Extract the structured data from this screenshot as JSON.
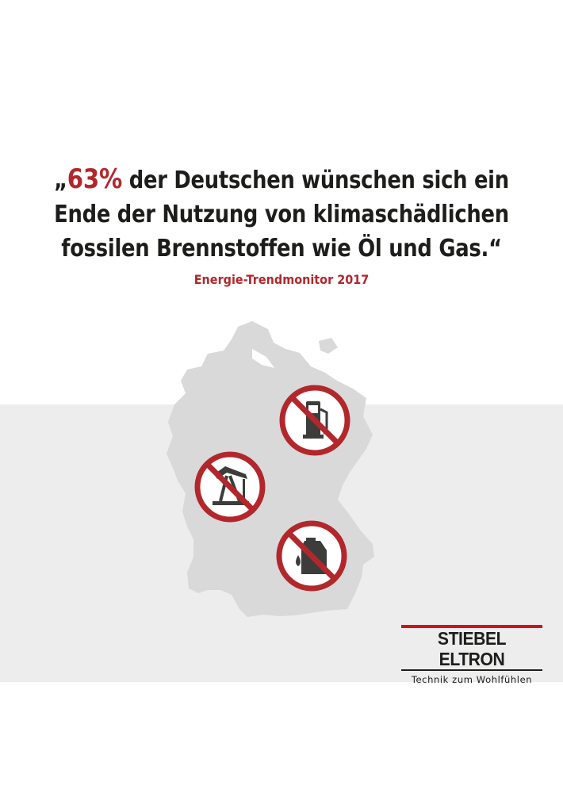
{
  "quote": {
    "line1_open": "„",
    "line1_pct": "63%",
    "line1_rest": " der Deutschen wünschen sich ein",
    "line2": "Ende der Nutzung von klimaschädlichen",
    "line3": "fossilen Brennstoffen wie Öl und Gas.“"
  },
  "source": "Energie-Trendmonitor 2017",
  "brand": {
    "name": "STIEBEL ELTRON",
    "tagline": "Technik zum Wohlfühlen",
    "accent_color": "#b2272c",
    "logo_red": "#d0121b"
  },
  "icons": [
    "no-fuel-pump-icon",
    "no-oil-derrick-icon",
    "no-oil-canister-icon"
  ],
  "colors": {
    "map": "#d9d9d9",
    "band": "#ededed",
    "text": "#1d1d1b"
  }
}
